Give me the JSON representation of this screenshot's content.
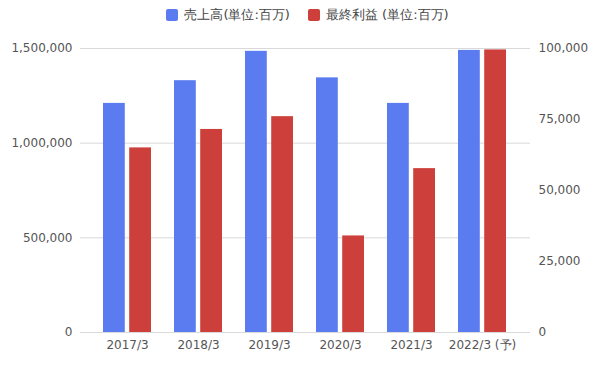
{
  "chart_data": {
    "type": "bar",
    "categories": [
      "2017/3",
      "2018/3",
      "2019/3",
      "2020/3",
      "2021/3",
      "2022/3 (予)"
    ],
    "series": [
      {
        "name": "売上高(単位:百万)",
        "color": "#5b7cf0",
        "values": [
          1210000,
          1330000,
          1485000,
          1345000,
          1210000,
          1490000
        ]
      },
      {
        "name": "最終利益 (単位:百万)",
        "color": "#cc3f3a",
        "axis": "y2",
        "values": [
          65000,
          71500,
          76000,
          34000,
          57700,
          99500
        ]
      }
    ],
    "ylim": [
      0,
      1500000
    ],
    "yticks": [
      0,
      {
        "value": 500000,
        "label": "500,000"
      },
      {
        "value": 1000000,
        "label": "1,000,000"
      },
      {
        "value": 1500000,
        "label": "1,500,000"
      }
    ],
    "y2lim": [
      0,
      100000
    ],
    "y2ticks": [
      0,
      {
        "value": 25000,
        "label": "25,000"
      },
      {
        "value": 50000,
        "label": "50,000"
      },
      {
        "value": 75000,
        "label": "75,000"
      },
      {
        "value": 100000,
        "label": "100,000"
      }
    ],
    "grid": true,
    "legend": "top"
  }
}
